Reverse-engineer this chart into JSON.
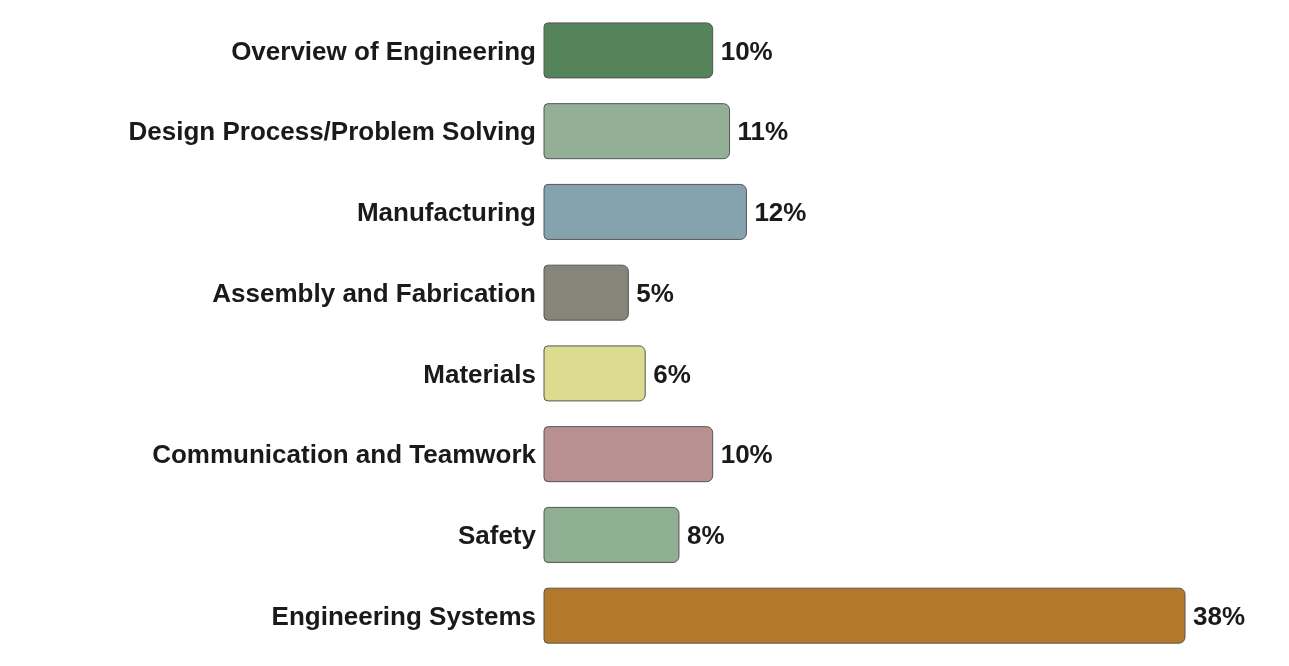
{
  "chart_data": {
    "type": "bar",
    "orientation": "horizontal",
    "categories": [
      "Overview of Engineering",
      "Design Process/Problem Solving",
      "Manufacturing",
      "Assembly and Fabrication",
      "Materials",
      "Communication and Teamwork",
      "Safety",
      "Engineering Systems"
    ],
    "values": [
      10,
      11,
      12,
      5,
      6,
      10,
      8,
      38
    ],
    "value_labels": [
      "10%",
      "11%",
      "12%",
      "5%",
      "6%",
      "10%",
      "8%",
      "38%"
    ],
    "colors": [
      "#55845a",
      "#93b096",
      "#85a3ae",
      "#85857a",
      "#dbdc8f",
      "#b99090",
      "#8eaf92",
      "#b4782a"
    ]
  }
}
